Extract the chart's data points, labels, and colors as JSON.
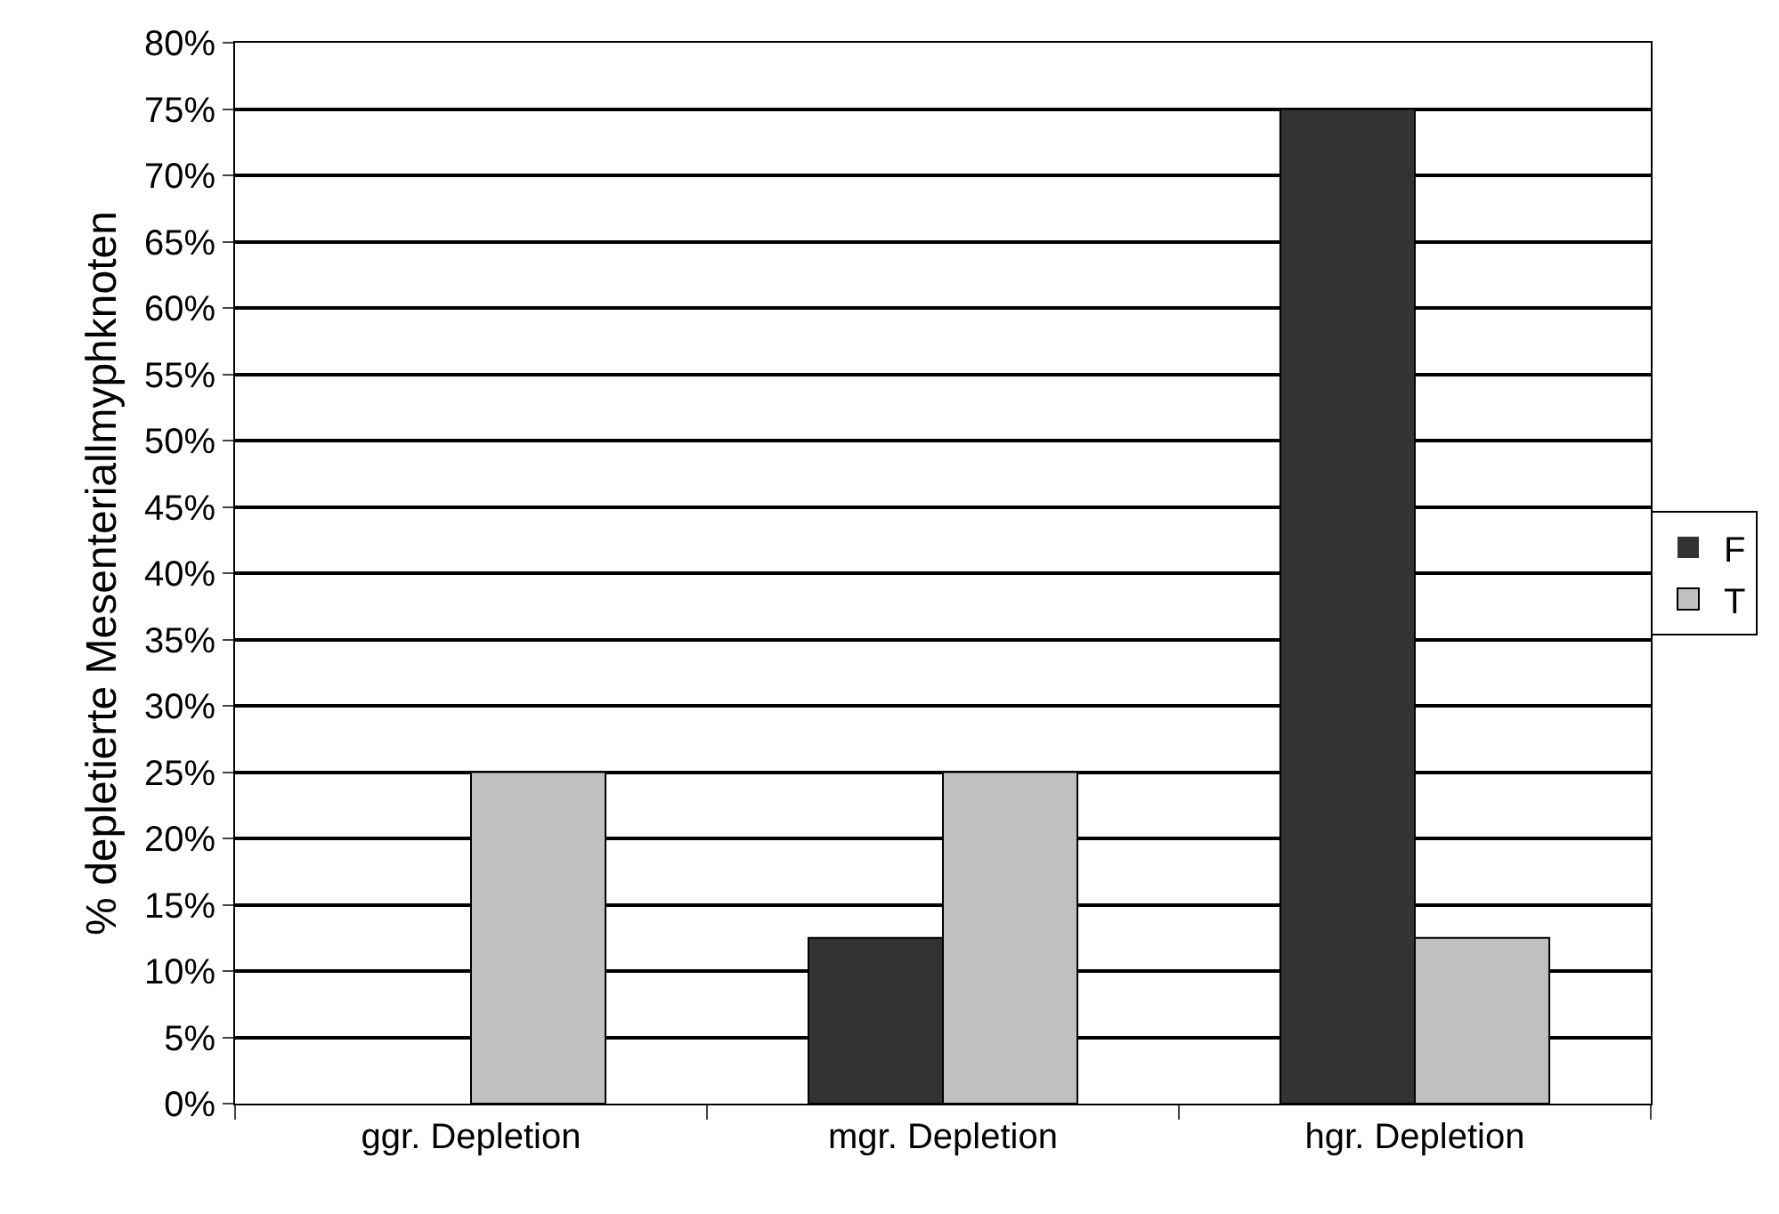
{
  "chart_data": {
    "type": "bar",
    "ylabel": "% depletierte Mesenteriallmyphknoten",
    "categories": [
      "ggr. Depletion",
      "mgr. Depletion",
      "hgr. Depletion"
    ],
    "series": [
      {
        "name": "F",
        "color": "#333333",
        "values": [
          0,
          12.5,
          75
        ]
      },
      {
        "name": "T",
        "color": "#c0c0c0",
        "values": [
          25,
          25,
          12.5
        ]
      }
    ],
    "ylim": [
      0,
      80
    ],
    "yticks": [
      {
        "value": 0,
        "label": "0%"
      },
      {
        "value": 5,
        "label": "5%"
      },
      {
        "value": 10,
        "label": "10%"
      },
      {
        "value": 15,
        "label": "15%"
      },
      {
        "value": 20,
        "label": "20%"
      },
      {
        "value": 25,
        "label": "25%"
      },
      {
        "value": 30,
        "label": "30%"
      },
      {
        "value": 35,
        "label": "35%"
      },
      {
        "value": 40,
        "label": "40%"
      },
      {
        "value": 45,
        "label": "45%"
      },
      {
        "value": 50,
        "label": "50%"
      },
      {
        "value": 55,
        "label": "55%"
      },
      {
        "value": 60,
        "label": "60%"
      },
      {
        "value": 65,
        "label": "65%"
      },
      {
        "value": 70,
        "label": "70%"
      },
      {
        "value": 75,
        "label": "75%"
      },
      {
        "value": 80,
        "label": "80%"
      }
    ],
    "grid": "y",
    "legend": "right"
  }
}
